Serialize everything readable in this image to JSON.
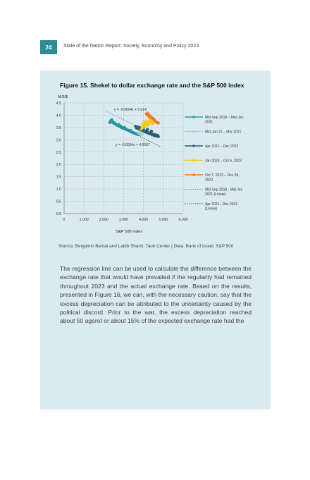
{
  "header": {
    "page_number": "24",
    "running_title": "State of the Nation Report: Society, Economy and Policy 2023"
  },
  "figure": {
    "title": "Figure 15. Shekel to dollar exchange rate and the S&P 500 index",
    "source": "Source: Benjamin Bental and Labib Shami, Taub Center | Data: Bank of Israel; S&P 500"
  },
  "chart_data": {
    "type": "scatter",
    "ylabel": "NIS/$",
    "xlabel": "S&P 500 index",
    "xlim": [
      0,
      6000
    ],
    "ylim": [
      0,
      4.5
    ],
    "xticks": [
      0,
      1000,
      2000,
      3000,
      4000,
      5000,
      6000
    ],
    "xtick_labels": [
      "0",
      "1,000",
      "2,000",
      "3,000",
      "4,000",
      "5,000",
      "6,000"
    ],
    "yticks": [
      0,
      0.5,
      1,
      1.5,
      2,
      2.5,
      3,
      3.5,
      4,
      4.5
    ],
    "ytick_labels": [
      "0.0",
      "0.5",
      "1.0",
      "1.5",
      "2.0",
      "2.5",
      "3.0",
      "3.5",
      "4.0",
      "4.5"
    ],
    "grid": true,
    "legend_position": "right",
    "series": [
      {
        "name": "Mid-Sep 2018 – Mid-Jan 2021",
        "color": "#2e9aa6",
        "points": [
          [
            2350,
            3.78
          ],
          [
            2420,
            3.72
          ],
          [
            2480,
            3.7
          ],
          [
            2520,
            3.66
          ],
          [
            2600,
            3.64
          ],
          [
            2650,
            3.6
          ],
          [
            2700,
            3.58
          ],
          [
            2780,
            3.55
          ],
          [
            2850,
            3.52
          ],
          [
            2900,
            3.5
          ],
          [
            2950,
            3.48
          ],
          [
            3000,
            3.46
          ],
          [
            3050,
            3.45
          ],
          [
            3100,
            3.43
          ],
          [
            3150,
            3.41
          ],
          [
            3200,
            3.4
          ],
          [
            3250,
            3.38
          ],
          [
            3300,
            3.36
          ],
          [
            3350,
            3.34
          ],
          [
            3400,
            3.32
          ],
          [
            3450,
            3.3
          ],
          [
            3500,
            3.28
          ],
          [
            3550,
            3.27
          ],
          [
            3600,
            3.25
          ],
          [
            3650,
            3.24
          ],
          [
            3700,
            3.22
          ],
          [
            2300,
            3.7
          ],
          [
            2450,
            3.75
          ],
          [
            2750,
            3.62
          ],
          [
            3050,
            3.5
          ],
          [
            3350,
            3.38
          ],
          [
            3700,
            3.26
          ],
          [
            3750,
            3.24
          ],
          [
            3800,
            3.22
          ],
          [
            2400,
            3.82
          ],
          [
            2550,
            3.68
          ],
          [
            2850,
            3.56
          ]
        ]
      },
      {
        "name": "Mid-Jan 21 – Mar 2021",
        "color": "#9fd3de",
        "points": [
          [
            3750,
            3.28
          ],
          [
            3800,
            3.26
          ],
          [
            3850,
            3.25
          ],
          [
            3900,
            3.24
          ],
          [
            3950,
            3.23
          ],
          [
            3820,
            3.3
          ],
          [
            3900,
            3.28
          ]
        ]
      },
      {
        "name": "Apr 2021 – Dec 2022",
        "color": "#2a5f73",
        "points": [
          [
            3600,
            3.55
          ],
          [
            3700,
            3.52
          ],
          [
            3800,
            3.5
          ],
          [
            3900,
            3.45
          ],
          [
            4000,
            3.4
          ],
          [
            4100,
            3.35
          ],
          [
            4200,
            3.3
          ],
          [
            4300,
            3.28
          ],
          [
            4400,
            3.25
          ],
          [
            4500,
            3.22
          ],
          [
            4600,
            3.2
          ],
          [
            4700,
            3.18
          ],
          [
            3650,
            3.48
          ],
          [
            3750,
            3.45
          ],
          [
            3850,
            3.42
          ],
          [
            3950,
            3.38
          ],
          [
            4050,
            3.34
          ],
          [
            4150,
            3.3
          ],
          [
            4250,
            3.27
          ],
          [
            4350,
            3.24
          ],
          [
            4450,
            3.2
          ],
          [
            4550,
            3.17
          ],
          [
            4650,
            3.15
          ],
          [
            4750,
            3.13
          ],
          [
            4000,
            3.5
          ],
          [
            4200,
            3.42
          ],
          [
            4400,
            3.35
          ]
        ]
      },
      {
        "name": "Jan 2023 – Oct 6, 2023",
        "color": "#f2cc1f",
        "points": [
          [
            3900,
            3.45
          ],
          [
            3950,
            3.5
          ],
          [
            4000,
            3.55
          ],
          [
            4050,
            3.6
          ],
          [
            4100,
            3.65
          ],
          [
            4150,
            3.7
          ],
          [
            4200,
            3.72
          ],
          [
            4250,
            3.68
          ],
          [
            4300,
            3.75
          ],
          [
            4350,
            3.7
          ],
          [
            4400,
            3.78
          ],
          [
            4450,
            3.74
          ],
          [
            4500,
            3.72
          ],
          [
            3950,
            3.62
          ],
          [
            4050,
            3.7
          ],
          [
            4150,
            3.58
          ],
          [
            4250,
            3.62
          ],
          [
            4350,
            3.8
          ],
          [
            4450,
            3.66
          ],
          [
            4000,
            3.68
          ],
          [
            4100,
            3.75
          ],
          [
            4200,
            3.6
          ]
        ]
      },
      {
        "name": "Oct 7, 2023 – Dec 28, 2023",
        "color": "#f07a2a",
        "points": [
          [
            4150,
            4.05
          ],
          [
            4200,
            4.08
          ],
          [
            4250,
            4.02
          ],
          [
            4300,
            3.98
          ],
          [
            4350,
            3.95
          ],
          [
            4400,
            3.9
          ],
          [
            4500,
            3.85
          ],
          [
            4550,
            3.8
          ],
          [
            4600,
            3.75
          ],
          [
            4650,
            3.72
          ],
          [
            4700,
            3.7
          ],
          [
            4750,
            3.68
          ],
          [
            4200,
            4.0
          ],
          [
            4300,
            3.92
          ],
          [
            4450,
            3.88
          ]
        ]
      }
    ],
    "trendlines": [
      {
        "name": "Mid-Sep 2018 - Mid-Jan 2021 (Linear)",
        "equation": "y = -0.0004x + 5.014",
        "slope": -0.0004,
        "intercept": 5.014,
        "x_range": [
          2100,
          3900
        ],
        "color": "#2e9aa6"
      },
      {
        "name": "Apr 2021 - Dec 2022 (Linear)",
        "equation": "y = -0.0004x + 4.6667",
        "slope": -0.0004,
        "intercept": 4.6667,
        "x_range": [
          2400,
          4900
        ],
        "color": "#2a5f73"
      }
    ]
  },
  "body": {
    "paragraph": "The regression line can be used to calculate the difference between the exchange rate that would have prevailed if the regularity had remained throughout 2023 and the actual exchange rate. Based on the results, presented in Figure 16, we can, with the necessary caution, say that the excess depreciation can be attributed to the uncertainty caused by the political discord. Prior to the war, the excess depreciation reached about 50 agorot or about 15% of the expected exchange rate had the"
  }
}
